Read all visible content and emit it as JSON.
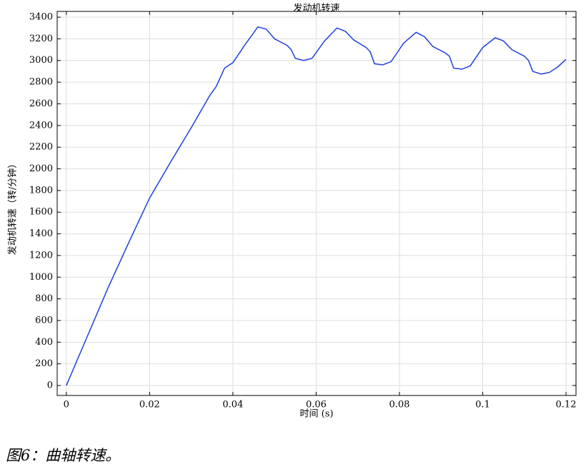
{
  "chart_data": {
    "type": "line",
    "title": "发动机转速",
    "x_label": "时间 (s)",
    "y_label": "发动机转速（转/分钟）",
    "x": [
      0,
      0.005,
      0.01,
      0.015,
      0.02,
      0.025,
      0.03,
      0.0345,
      0.036,
      0.038,
      0.04,
      0.043,
      0.046,
      0.048,
      0.05,
      0.053,
      0.054,
      0.055,
      0.057,
      0.059,
      0.062,
      0.065,
      0.067,
      0.069,
      0.072,
      0.073,
      0.074,
      0.076,
      0.078,
      0.081,
      0.084,
      0.086,
      0.088,
      0.091,
      0.092,
      0.093,
      0.095,
      0.097,
      0.1,
      0.103,
      0.105,
      0.107,
      0.11,
      0.111,
      0.112,
      0.114,
      0.116,
      0.118,
      0.12
    ],
    "series": [
      {
        "name": "发动机转速",
        "color": "#1f3fdf",
        "values": [
          0,
          450,
          900,
          1320,
          1730,
          2060,
          2380,
          2680,
          2760,
          2930,
          2980,
          3150,
          3310,
          3290,
          3200,
          3140,
          3100,
          3020,
          3000,
          3020,
          3180,
          3300,
          3270,
          3190,
          3120,
          3080,
          2970,
          2960,
          2990,
          3160,
          3260,
          3220,
          3130,
          3070,
          3040,
          2930,
          2920,
          2950,
          3120,
          3210,
          3180,
          3100,
          3040,
          3000,
          2900,
          2875,
          2890,
          2940,
          3010
        ]
      }
    ],
    "xlim": [
      -0.0022,
      0.1224
    ],
    "ylim": [
      -92,
      3453
    ],
    "xticks": [
      0,
      0.02,
      0.04,
      0.06,
      0.08,
      0.1,
      0.12
    ],
    "yticks": [
      0,
      200,
      400,
      600,
      800,
      1000,
      1200,
      1400,
      1600,
      1800,
      2000,
      2200,
      2400,
      2600,
      2800,
      3000,
      3200,
      3400
    ],
    "grid": true
  },
  "caption": "图6：曲轴转速。"
}
